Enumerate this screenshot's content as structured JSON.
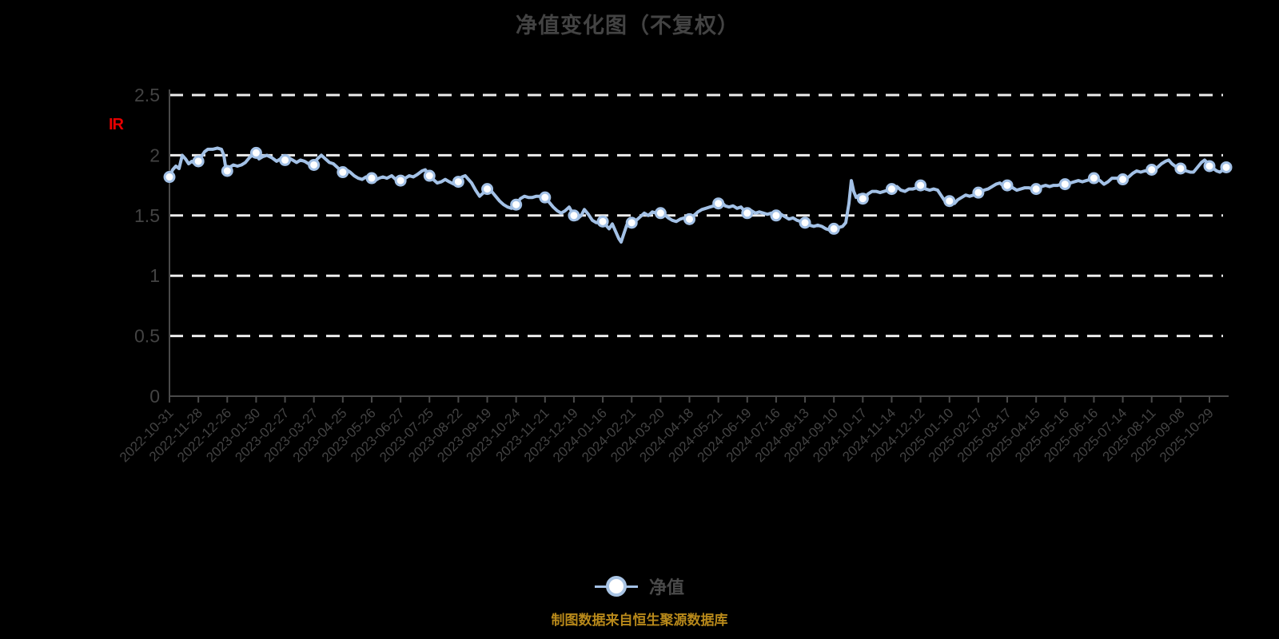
{
  "title": "净值变化图（不复权）",
  "axis_annotation": "IR",
  "legend": {
    "label": "净值"
  },
  "footnote": "制图数据来自恒生聚源数据库",
  "colors": {
    "background": "#000000",
    "title": "#434343",
    "axis": "#4a4a4a",
    "tick_label": "#434343",
    "gridline": "#ececec",
    "line": "#a3c1e6",
    "marker_fill": "#ffffff",
    "annotation": "#e80000",
    "footnote": "#b8891a"
  },
  "chart_data": {
    "type": "line",
    "title": "净值变化图（不复权）",
    "series": [
      {
        "name": "净值"
      }
    ],
    "ylim": [
      0,
      2.5
    ],
    "y_ticks": [
      0,
      0.5,
      1,
      1.5,
      2,
      2.5
    ],
    "grid": "horizontal-dashed",
    "legend_position": "bottom-center",
    "x_tick_labels": [
      "2022-10-31",
      "2022-11-28",
      "2022-12-26",
      "2023-01-30",
      "2023-02-27",
      "2023-03-27",
      "2023-04-25",
      "2023-05-26",
      "2023-06-27",
      "2023-07-25",
      "2023-08-22",
      "2023-09-19",
      "2023-10-24",
      "2023-11-21",
      "2023-12-19",
      "2024-01-16",
      "2024-02-21",
      "2024-03-20",
      "2024-04-18",
      "2024-05-21",
      "2024-06-19",
      "2024-07-16",
      "2024-08-13",
      "2024-09-10",
      "2024-10-17",
      "2024-11-14",
      "2024-12-12",
      "2025-01-10",
      "2025-02-17",
      "2025-03-17",
      "2025-04-15",
      "2025-05-16",
      "2025-06-16",
      "2025-07-14",
      "2025-08-11",
      "2025-09-08",
      "2025-10-29"
    ],
    "marker_values": [
      1.82,
      1.95,
      1.87,
      2.02,
      1.96,
      1.92,
      1.86,
      1.81,
      1.79,
      1.83,
      1.78,
      1.72,
      1.59,
      1.65,
      1.5,
      1.45,
      1.44,
      1.52,
      1.47,
      1.6,
      1.52,
      1.5,
      1.44,
      1.39,
      1.64,
      1.72,
      1.75,
      1.62,
      1.69,
      1.75,
      1.72,
      1.76,
      1.81,
      1.8,
      1.88,
      1.89,
      1.91
    ],
    "end_marker_value": 1.9,
    "trace_units": [
      "x_pixel",
      "net_value"
    ],
    "line_trace": [
      [
        212,
        1.82
      ],
      [
        216,
        1.88
      ],
      [
        220,
        1.91
      ],
      [
        224,
        1.89
      ],
      [
        228,
        2.0
      ],
      [
        232,
        1.97
      ],
      [
        236,
        1.93
      ],
      [
        240,
        1.95
      ],
      [
        244,
        1.93
      ],
      [
        248,
        1.95
      ],
      [
        252,
        1.99
      ],
      [
        256,
        2.03
      ],
      [
        260,
        2.05
      ],
      [
        266,
        2.05
      ],
      [
        272,
        2.06
      ],
      [
        277,
        2.05
      ],
      [
        280,
        2.0
      ],
      [
        283,
        1.87
      ],
      [
        287,
        1.9
      ],
      [
        292,
        1.92
      ],
      [
        297,
        1.91
      ],
      [
        302,
        1.92
      ],
      [
        307,
        1.94
      ],
      [
        312,
        1.98
      ],
      [
        319,
        2.02
      ],
      [
        324,
        1.97
      ],
      [
        329,
        1.99
      ],
      [
        334,
        2.0
      ],
      [
        340,
        1.98
      ],
      [
        346,
        1.95
      ],
      [
        351,
        1.97
      ],
      [
        356,
        1.96
      ],
      [
        361,
        1.98
      ],
      [
        366,
        1.96
      ],
      [
        371,
        1.94
      ],
      [
        376,
        1.96
      ],
      [
        381,
        1.95
      ],
      [
        386,
        1.93
      ],
      [
        392,
        1.92
      ],
      [
        397,
        1.97
      ],
      [
        402,
        2.0
      ],
      [
        407,
        1.97
      ],
      [
        412,
        1.94
      ],
      [
        417,
        1.93
      ],
      [
        422,
        1.9
      ],
      [
        428,
        1.86
      ],
      [
        433,
        1.88
      ],
      [
        438,
        1.86
      ],
      [
        443,
        1.83
      ],
      [
        448,
        1.81
      ],
      [
        453,
        1.8
      ],
      [
        458,
        1.82
      ],
      [
        464,
        1.81
      ],
      [
        469,
        1.79
      ],
      [
        474,
        1.81
      ],
      [
        479,
        1.82
      ],
      [
        484,
        1.81
      ],
      [
        490,
        1.83
      ],
      [
        495,
        1.8
      ],
      [
        502,
        1.79
      ],
      [
        507,
        1.81
      ],
      [
        512,
        1.83
      ],
      [
        517,
        1.82
      ],
      [
        522,
        1.84
      ],
      [
        528,
        1.87
      ],
      [
        532,
        1.88
      ],
      [
        537,
        1.83
      ],
      [
        542,
        1.8
      ],
      [
        547,
        1.77
      ],
      [
        552,
        1.78
      ],
      [
        557,
        1.8
      ],
      [
        562,
        1.78
      ],
      [
        568,
        1.76
      ],
      [
        574,
        1.78
      ],
      [
        578,
        1.82
      ],
      [
        582,
        1.83
      ],
      [
        586,
        1.8
      ],
      [
        590,
        1.77
      ],
      [
        595,
        1.71
      ],
      [
        600,
        1.66
      ],
      [
        605,
        1.69
      ],
      [
        610,
        1.72
      ],
      [
        615,
        1.7
      ],
      [
        620,
        1.66
      ],
      [
        625,
        1.62
      ],
      [
        630,
        1.59
      ],
      [
        635,
        1.57
      ],
      [
        640,
        1.56
      ],
      [
        646,
        1.59
      ],
      [
        651,
        1.64
      ],
      [
        656,
        1.66
      ],
      [
        661,
        1.65
      ],
      [
        666,
        1.65
      ],
      [
        671,
        1.66
      ],
      [
        676,
        1.66
      ],
      [
        682,
        1.65
      ],
      [
        687,
        1.61
      ],
      [
        692,
        1.57
      ],
      [
        697,
        1.54
      ],
      [
        702,
        1.52
      ],
      [
        707,
        1.54
      ],
      [
        712,
        1.57
      ],
      [
        718,
        1.5
      ],
      [
        722,
        1.47
      ],
      [
        727,
        1.5
      ],
      [
        731,
        1.55
      ],
      [
        736,
        1.51
      ],
      [
        741,
        1.46
      ],
      [
        746,
        1.44
      ],
      [
        754,
        1.45
      ],
      [
        758,
        1.42
      ],
      [
        762,
        1.39
      ],
      [
        766,
        1.43
      ],
      [
        770,
        1.37
      ],
      [
        774,
        1.31
      ],
      [
        777,
        1.28
      ],
      [
        780,
        1.34
      ],
      [
        784,
        1.42
      ],
      [
        787,
        1.45
      ],
      [
        791,
        1.44
      ],
      [
        796,
        1.46
      ],
      [
        801,
        1.49
      ],
      [
        806,
        1.52
      ],
      [
        811,
        1.5
      ],
      [
        816,
        1.53
      ],
      [
        821,
        1.52
      ],
      [
        826,
        1.52
      ],
      [
        831,
        1.51
      ],
      [
        836,
        1.48
      ],
      [
        841,
        1.46
      ],
      [
        846,
        1.45
      ],
      [
        851,
        1.47
      ],
      [
        856,
        1.48
      ],
      [
        863,
        1.47
      ],
      [
        868,
        1.5
      ],
      [
        873,
        1.53
      ],
      [
        878,
        1.55
      ],
      [
        883,
        1.56
      ],
      [
        888,
        1.57
      ],
      [
        893,
        1.58
      ],
      [
        899,
        1.6
      ],
      [
        903,
        1.61
      ],
      [
        907,
        1.58
      ],
      [
        912,
        1.57
      ],
      [
        917,
        1.58
      ],
      [
        922,
        1.56
      ],
      [
        927,
        1.57
      ],
      [
        931,
        1.54
      ],
      [
        935,
        1.52
      ],
      [
        940,
        1.54
      ],
      [
        945,
        1.52
      ],
      [
        950,
        1.53
      ],
      [
        955,
        1.52
      ],
      [
        960,
        1.51
      ],
      [
        965,
        1.52
      ],
      [
        972,
        1.5
      ],
      [
        977,
        1.51
      ],
      [
        982,
        1.49
      ],
      [
        987,
        1.47
      ],
      [
        992,
        1.48
      ],
      [
        997,
        1.46
      ],
      [
        1002,
        1.45
      ],
      [
        1008,
        1.44
      ],
      [
        1013,
        1.42
      ],
      [
        1018,
        1.41
      ],
      [
        1023,
        1.42
      ],
      [
        1028,
        1.41
      ],
      [
        1033,
        1.39
      ],
      [
        1038,
        1.38
      ],
      [
        1044,
        1.39
      ],
      [
        1049,
        1.4
      ],
      [
        1054,
        1.41
      ],
      [
        1058,
        1.44
      ],
      [
        1062,
        1.6
      ],
      [
        1065,
        1.79
      ],
      [
        1068,
        1.7
      ],
      [
        1071,
        1.65
      ],
      [
        1075,
        1.67
      ],
      [
        1081,
        1.64
      ],
      [
        1086,
        1.68
      ],
      [
        1091,
        1.7
      ],
      [
        1096,
        1.7
      ],
      [
        1101,
        1.69
      ],
      [
        1106,
        1.7
      ],
      [
        1111,
        1.71
      ],
      [
        1117,
        1.72
      ],
      [
        1122,
        1.74
      ],
      [
        1127,
        1.71
      ],
      [
        1132,
        1.7
      ],
      [
        1137,
        1.72
      ],
      [
        1142,
        1.72
      ],
      [
        1147,
        1.73
      ],
      [
        1153,
        1.75
      ],
      [
        1158,
        1.72
      ],
      [
        1163,
        1.71
      ],
      [
        1168,
        1.72
      ],
      [
        1173,
        1.71
      ],
      [
        1178,
        1.66
      ],
      [
        1183,
        1.61
      ],
      [
        1187,
        1.59
      ],
      [
        1190,
        1.62
      ],
      [
        1194,
        1.6
      ],
      [
        1198,
        1.63
      ],
      [
        1203,
        1.65
      ],
      [
        1208,
        1.67
      ],
      [
        1213,
        1.66
      ],
      [
        1218,
        1.67
      ],
      [
        1222,
        1.68
      ],
      [
        1226,
        1.69
      ],
      [
        1231,
        1.71
      ],
      [
        1236,
        1.72
      ],
      [
        1241,
        1.74
      ],
      [
        1246,
        1.76
      ],
      [
        1251,
        1.77
      ],
      [
        1256,
        1.74
      ],
      [
        1262,
        1.75
      ],
      [
        1267,
        1.73
      ],
      [
        1272,
        1.71
      ],
      [
        1277,
        1.72
      ],
      [
        1282,
        1.73
      ],
      [
        1287,
        1.73
      ],
      [
        1292,
        1.72
      ],
      [
        1298,
        1.72
      ],
      [
        1303,
        1.74
      ],
      [
        1308,
        1.75
      ],
      [
        1313,
        1.74
      ],
      [
        1318,
        1.75
      ],
      [
        1323,
        1.75
      ],
      [
        1328,
        1.76
      ],
      [
        1334,
        1.76
      ],
      [
        1339,
        1.77
      ],
      [
        1344,
        1.78
      ],
      [
        1349,
        1.79
      ],
      [
        1354,
        1.78
      ],
      [
        1359,
        1.79
      ],
      [
        1364,
        1.8
      ],
      [
        1371,
        1.81
      ],
      [
        1376,
        1.79
      ],
      [
        1381,
        1.76
      ],
      [
        1386,
        1.78
      ],
      [
        1391,
        1.81
      ],
      [
        1396,
        1.81
      ],
      [
        1401,
        1.81
      ],
      [
        1407,
        1.8
      ],
      [
        1412,
        1.82
      ],
      [
        1417,
        1.85
      ],
      [
        1422,
        1.87
      ],
      [
        1427,
        1.86
      ],
      [
        1432,
        1.87
      ],
      [
        1437,
        1.87
      ],
      [
        1443,
        1.88
      ],
      [
        1448,
        1.9
      ],
      [
        1453,
        1.93
      ],
      [
        1458,
        1.95
      ],
      [
        1462,
        1.96
      ],
      [
        1466,
        1.93
      ],
      [
        1470,
        1.91
      ],
      [
        1475,
        1.9
      ],
      [
        1479,
        1.89
      ],
      [
        1484,
        1.87
      ],
      [
        1489,
        1.86
      ],
      [
        1493,
        1.86
      ],
      [
        1498,
        1.9
      ],
      [
        1503,
        1.94
      ],
      [
        1507,
        1.96
      ],
      [
        1510,
        1.94
      ],
      [
        1513,
        1.91
      ],
      [
        1518,
        1.89
      ],
      [
        1522,
        1.87
      ],
      [
        1526,
        1.86
      ],
      [
        1530,
        1.88
      ],
      [
        1534,
        1.9
      ],
      [
        1538,
        1.89
      ]
    ]
  }
}
